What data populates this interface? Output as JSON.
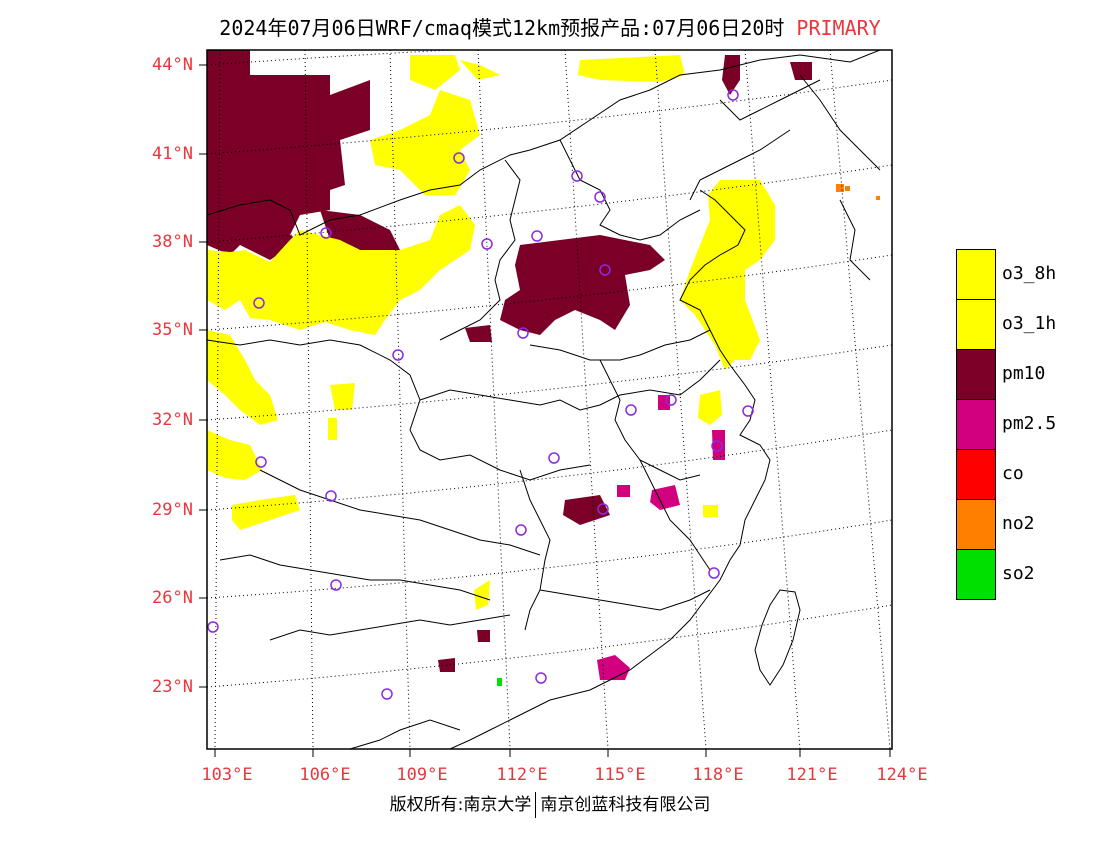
{
  "title": {
    "main": "2024年07月06日WRF/cmaq模式12km预报产品:07月06日20时",
    "tag": "PRIMARY"
  },
  "lat_labels": [
    "44°N",
    "41°N",
    "38°N",
    "35°N",
    "32°N",
    "29°N",
    "26°N",
    "23°N"
  ],
  "lon_labels": [
    "103°E",
    "106°E",
    "109°E",
    "112°E",
    "115°E",
    "118°E",
    "121°E",
    "124°E"
  ],
  "legend": [
    {
      "label": "o3_8h",
      "color": "#ffff00"
    },
    {
      "label": "o3_1h",
      "color": "#ffff00"
    },
    {
      "label": "pm10",
      "color": "#7b0028"
    },
    {
      "label": "pm2.5",
      "color": "#d2007f"
    },
    {
      "label": "co",
      "color": "#ff0000"
    },
    {
      "label": "no2",
      "color": "#ff8000"
    },
    {
      "label": "so2",
      "color": "#00e000"
    }
  ],
  "credit": {
    "left": "版权所有:南京大学",
    "right": "南京创蓝科技有限公司"
  },
  "colors": {
    "o3": "#ffff00",
    "pm10": "#7b0028",
    "pm25": "#d2007f",
    "no2": "#ff8000",
    "so2": "#00e000",
    "station": "#8a2be2",
    "label": "#e8383d"
  }
}
